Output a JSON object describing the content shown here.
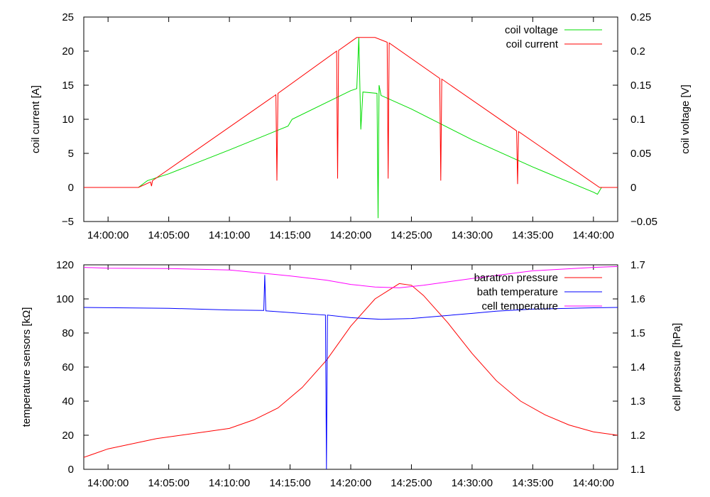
{
  "chart_data": [
    {
      "type": "line",
      "xlabel": "",
      "ylabel_left": "coil current [A]",
      "ylabel_right": "coil voltage [V]",
      "x_ticks": [
        "14:00:00",
        "14:05:00",
        "14:10:00",
        "14:15:00",
        "14:20:00",
        "14:25:00",
        "14:30:00",
        "14:35:00",
        "14:40:00"
      ],
      "xlim": [
        "13:58:00",
        "14:42:00"
      ],
      "ylim_left": [
        -5,
        25
      ],
      "ylim_right": [
        -0.05,
        0.25
      ],
      "y_ticks_left": [
        "−5",
        "0",
        "5",
        "10",
        "15",
        "20",
        "25"
      ],
      "y_ticks_right": [
        "−0.05",
        "0",
        "0.05",
        "0.1",
        "0.15",
        "0.2",
        "0.25"
      ],
      "grid": false,
      "legend_position": "top-right",
      "series": [
        {
          "name": "coil voltage",
          "axis": "right",
          "color": "#00dd00",
          "points": [
            [
              "13:58:00",
              0.0
            ],
            [
              "14:02:30",
              0.0
            ],
            [
              "14:03:15",
              0.01
            ],
            [
              "14:05:00",
              0.02
            ],
            [
              "14:10:00",
              0.055
            ],
            [
              "14:14:50",
              0.09
            ],
            [
              "14:15:00",
              0.095
            ],
            [
              "14:15:10",
              0.1
            ],
            [
              "14:20:00",
              0.142
            ],
            [
              "14:20:30",
              0.145
            ],
            [
              "14:20:40",
              0.22
            ],
            [
              "14:20:50",
              0.085
            ],
            [
              "14:21:00",
              0.14
            ],
            [
              "14:22:10",
              0.138
            ],
            [
              "14:22:15",
              -0.045
            ],
            [
              "14:22:20",
              0.15
            ],
            [
              "14:22:30",
              0.135
            ],
            [
              "14:25:00",
              0.115
            ],
            [
              "14:30:00",
              0.07
            ],
            [
              "14:35:00",
              0.03
            ],
            [
              "14:40:00",
              -0.007
            ],
            [
              "14:40:20",
              -0.01
            ],
            [
              "14:40:40",
              0.0
            ],
            [
              "14:42:00",
              0.0
            ]
          ]
        },
        {
          "name": "coil current",
          "axis": "left",
          "color": "#ff0000",
          "points": [
            [
              "13:58:00",
              0.0
            ],
            [
              "14:02:30",
              0.0
            ],
            [
              "14:03:30",
              0.8
            ],
            [
              "14:03:35",
              0.2
            ],
            [
              "14:03:40",
              1.0
            ],
            [
              "14:13:50",
              13.6
            ],
            [
              "14:13:55",
              1.0
            ],
            [
              "14:14:00",
              13.8
            ],
            [
              "14:18:50",
              20.0
            ],
            [
              "14:18:55",
              1.3
            ],
            [
              "14:19:00",
              20.1
            ],
            [
              "14:20:30",
              22.0
            ],
            [
              "14:22:00",
              22.0
            ],
            [
              "14:23:00",
              21.3
            ],
            [
              "14:23:05",
              1.3
            ],
            [
              "14:23:10",
              21.2
            ],
            [
              "14:27:20",
              16.0
            ],
            [
              "14:27:25",
              1.0
            ],
            [
              "14:27:30",
              15.9
            ],
            [
              "14:33:40",
              8.3
            ],
            [
              "14:33:45",
              0.5
            ],
            [
              "14:33:50",
              8.2
            ],
            [
              "14:40:30",
              0.0
            ],
            [
              "14:42:00",
              0.0
            ]
          ]
        }
      ]
    },
    {
      "type": "line",
      "xlabel": "",
      "ylabel_left": "temperature sensors [kΩ]",
      "ylabel_right": "cell pressure [hPa]",
      "x_ticks": [
        "14:00:00",
        "14:05:00",
        "14:10:00",
        "14:15:00",
        "14:20:00",
        "14:25:00",
        "14:30:00",
        "14:35:00",
        "14:40:00"
      ],
      "xlim": [
        "13:58:00",
        "14:42:00"
      ],
      "ylim_left": [
        0,
        120
      ],
      "ylim_right": [
        1.1,
        1.7
      ],
      "y_ticks_left": [
        "0",
        "20",
        "40",
        "60",
        "80",
        "100",
        "120"
      ],
      "y_ticks_right": [
        "1.1",
        "1.2",
        "1.3",
        "1.4",
        "1.5",
        "1.6",
        "1.7"
      ],
      "grid": false,
      "legend_position": "top-right",
      "series": [
        {
          "name": "baratron pressure",
          "axis": "right",
          "color": "#ff0000",
          "points": [
            [
              "13:58:00",
              1.135
            ],
            [
              "14:00:00",
              1.16
            ],
            [
              "14:02:00",
              1.175
            ],
            [
              "14:04:00",
              1.19
            ],
            [
              "14:06:00",
              1.2
            ],
            [
              "14:08:00",
              1.21
            ],
            [
              "14:10:00",
              1.22
            ],
            [
              "14:12:00",
              1.245
            ],
            [
              "14:14:00",
              1.28
            ],
            [
              "14:16:00",
              1.34
            ],
            [
              "14:18:00",
              1.42
            ],
            [
              "14:20:00",
              1.52
            ],
            [
              "14:22:00",
              1.6
            ],
            [
              "14:24:00",
              1.645
            ],
            [
              "14:25:00",
              1.64
            ],
            [
              "14:26:00",
              1.61
            ],
            [
              "14:28:00",
              1.53
            ],
            [
              "14:30:00",
              1.44
            ],
            [
              "14:32:00",
              1.36
            ],
            [
              "14:34:00",
              1.3
            ],
            [
              "14:36:00",
              1.26
            ],
            [
              "14:38:00",
              1.23
            ],
            [
              "14:40:00",
              1.21
            ],
            [
              "14:42:00",
              1.2
            ]
          ]
        },
        {
          "name": "bath temperature",
          "axis": "left",
          "color": "#0000ff",
          "points": [
            [
              "13:58:00",
              95.0
            ],
            [
              "14:05:00",
              94.5
            ],
            [
              "14:10:00",
              93.5
            ],
            [
              "14:12:50",
              93.2
            ],
            [
              "14:12:55",
              114.0
            ],
            [
              "14:13:00",
              93.0
            ],
            [
              "14:17:55",
              90.5
            ],
            [
              "14:18:00",
              0.0
            ],
            [
              "14:18:05",
              90.5
            ],
            [
              "14:20:00",
              89.0
            ],
            [
              "14:22:30",
              88.0
            ],
            [
              "14:25:00",
              88.5
            ],
            [
              "14:30:00",
              91.5
            ],
            [
              "14:32:00",
              92.8
            ],
            [
              "14:35:00",
              94.0
            ],
            [
              "14:40:00",
              94.8
            ],
            [
              "14:42:00",
              95.0
            ]
          ]
        },
        {
          "name": "cell temperature",
          "axis": "left",
          "color": "#ff00ff",
          "points": [
            [
              "13:58:00",
              118.5
            ],
            [
              "14:00:00",
              118.0
            ],
            [
              "14:05:00",
              117.8
            ],
            [
              "14:10:00",
              117.0
            ],
            [
              "14:15:00",
              113.5
            ],
            [
              "14:18:00",
              111.0
            ],
            [
              "14:20:00",
              108.5
            ],
            [
              "14:22:00",
              107.0
            ],
            [
              "14:24:00",
              106.5
            ],
            [
              "14:26:00",
              108.0
            ],
            [
              "14:30:00",
              112.0
            ],
            [
              "14:35:00",
              116.5
            ],
            [
              "14:40:00",
              118.5
            ],
            [
              "14:42:00",
              119.0
            ]
          ]
        }
      ]
    }
  ]
}
